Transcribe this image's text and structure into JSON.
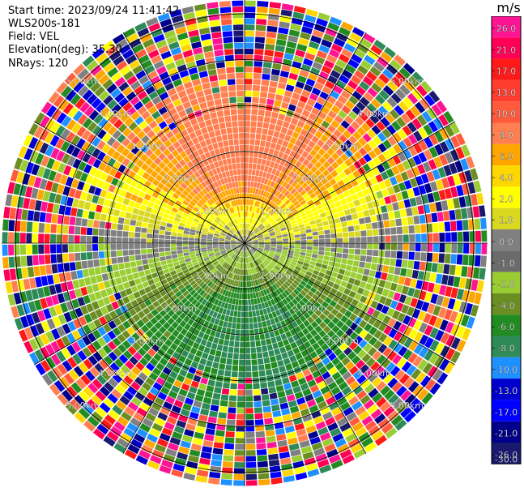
{
  "header": {
    "start_time": "Start time: 2023/09/24 11:41:42",
    "instrument": "WLS200s-181",
    "field": "Field: VEL",
    "elevation": "Elevation(deg): 35.30",
    "nrays": "NRays: 120"
  },
  "colorbar": {
    "unit": "m/s",
    "ticks": [
      "26.0",
      "21.0",
      "17.0",
      "13.0",
      "10.0",
      "8.0",
      "6.0",
      "4.0",
      "2.0",
      "1.0",
      "0.0",
      "-1.0",
      "-2.0",
      "-4.0",
      "-6.0",
      "-8.0",
      "-10.0",
      "-13.0",
      "-17.0",
      "-21.0",
      "-26.0",
      "-30.0"
    ],
    "colors": [
      "#ff1493",
      "#ff0055",
      "#ff1a1a",
      "#ff3d2e",
      "#ff5a3c",
      "#ff7f50",
      "#ffa500",
      "#ffd700",
      "#ffff00",
      "#d8d820",
      "#808080",
      "#6b6b6b",
      "#9acd32",
      "#6b8e23",
      "#228b22",
      "#2e8b57",
      "#1e90ff",
      "#0000cd",
      "#0000ff",
      "#00008b",
      "#191970"
    ]
  },
  "chart_data": {
    "type": "heatmap",
    "title": "Start time: 2023/09/24 11:41:42",
    "field": "VEL",
    "units": "m/s",
    "nrays": 120,
    "elevation_deg": 35.3,
    "range_rings_km": [
      1.0,
      2.0,
      3.0,
      4.0,
      5.0
    ],
    "range_labels": [
      "1.00km",
      "2.00km",
      "3.00km",
      "4.00km",
      "5.00km"
    ],
    "azimuth_spokes_deg": [
      0,
      30,
      60,
      90,
      120,
      150,
      180,
      210,
      240,
      270,
      300,
      330
    ],
    "velocity_range": [
      -30.0,
      26.0
    ],
    "pattern": "Positive radial velocities (yellow–orange) in the northern half within ~3 km, negative velocities (green) in the southern half, near-zero (grey) along the east–west axis; beyond ~3.5 km the field is noisy with random colors."
  }
}
